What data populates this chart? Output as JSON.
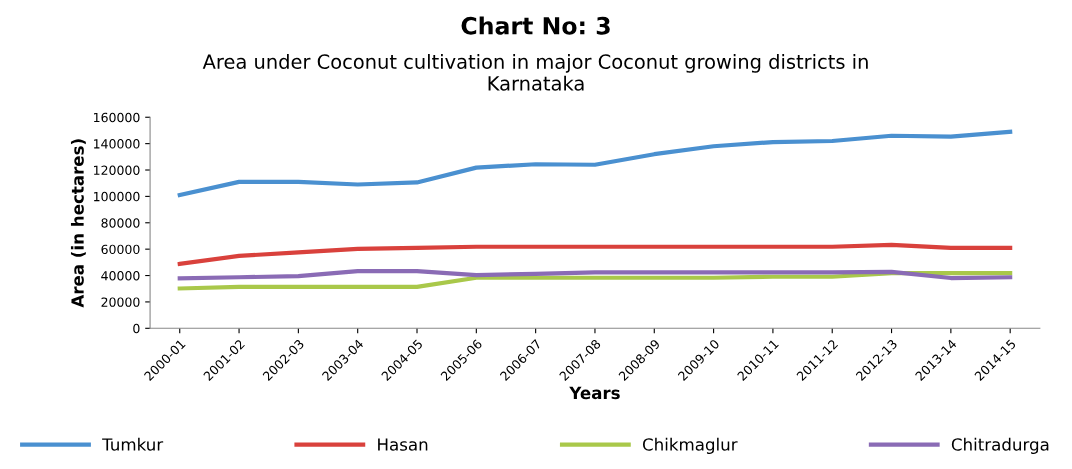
{
  "chart_data": {
    "type": "line",
    "title": "Chart No: 3",
    "subtitle": "Area under Coconut cultivation in major Coconut growing districts in\nKarnataka",
    "xlabel": "Years",
    "ylabel": "Area (in hectares)",
    "categories": [
      "2000-01",
      "2001-02",
      "2002-03",
      "2003-04",
      "2004-05",
      "2005-06",
      "2006-07",
      "2007-08",
      "2008-09",
      "2009-10",
      "2010-11",
      "2011-12",
      "2012-13",
      "2013-14",
      "2014-15"
    ],
    "series": [
      {
        "name": "Tumkur",
        "color": "#4a90d0",
        "values": [
          101000,
          111000,
          111000,
          109000,
          110600,
          121800,
          124400,
          124000,
          132000,
          138000,
          141200,
          142000,
          146000,
          145300,
          149000
        ]
      },
      {
        "name": "Hasan",
        "color": "#d9413c",
        "values": [
          48800,
          54900,
          57500,
          60200,
          61000,
          61800,
          61800,
          61800,
          61800,
          61800,
          61800,
          61800,
          63200,
          61000,
          61000
        ]
      },
      {
        "name": "Chikmaglur",
        "color": "#a9c84a",
        "values": [
          30200,
          31400,
          31400,
          31400,
          31400,
          38300,
          38300,
          38300,
          38300,
          38300,
          39100,
          39100,
          41800,
          41800,
          41800
        ]
      },
      {
        "name": "Chitradurga",
        "color": "#8a6bb5",
        "values": [
          37900,
          38700,
          39500,
          43300,
          43300,
          40300,
          41300,
          42400,
          42400,
          42400,
          42400,
          42400,
          42800,
          38100,
          38700
        ]
      }
    ],
    "ylim": [
      0,
      160000
    ],
    "yticks": [
      0,
      20000,
      40000,
      60000,
      80000,
      100000,
      120000,
      140000,
      160000
    ],
    "grid": false,
    "legend": "bottom",
    "marker": "none",
    "line_style": "solid"
  }
}
